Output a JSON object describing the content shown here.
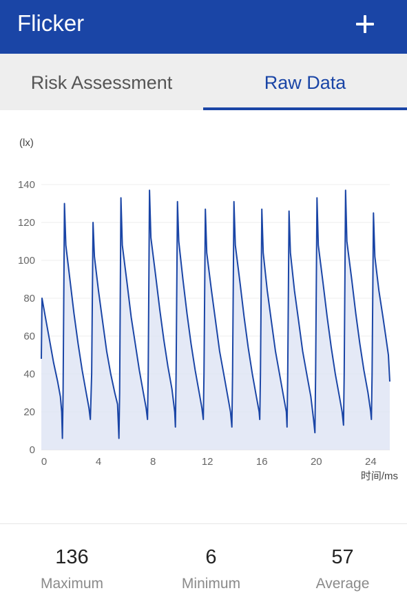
{
  "app": {
    "title": "Flicker",
    "add_icon": "plus-icon",
    "accent_color": "#1a45a6"
  },
  "tabs": [
    {
      "label": "Risk Assessment",
      "active": false
    },
    {
      "label": "Raw Data",
      "active": true
    }
  ],
  "chart_data": {
    "type": "area",
    "title": "",
    "ylabel": "(lx)",
    "xlabel": "时间/ms",
    "xlim": [
      0,
      25.6
    ],
    "ylim": [
      0,
      140
    ],
    "x_ticks": [
      0,
      4,
      8,
      12,
      16,
      20,
      24
    ],
    "y_ticks": [
      0,
      20,
      40,
      60,
      80,
      100,
      120,
      140
    ],
    "grid": true,
    "line_color": "#1a45a6",
    "fill_color": "#dfe5f4",
    "series": [
      {
        "points": [
          [
            0.0,
            48
          ],
          [
            0.05,
            80
          ],
          [
            0.3,
            70
          ],
          [
            0.6,
            58
          ],
          [
            0.9,
            46
          ],
          [
            1.2,
            36
          ],
          [
            1.4,
            28
          ],
          [
            1.5,
            20
          ],
          [
            1.55,
            6
          ],
          [
            1.6,
            30
          ],
          [
            1.7,
            130
          ],
          [
            1.8,
            108
          ],
          [
            2.1,
            90
          ],
          [
            2.4,
            72
          ],
          [
            2.7,
            56
          ],
          [
            3.0,
            42
          ],
          [
            3.3,
            30
          ],
          [
            3.5,
            22
          ],
          [
            3.6,
            16
          ],
          [
            3.7,
            40
          ],
          [
            3.8,
            120
          ],
          [
            3.9,
            102
          ],
          [
            4.2,
            84
          ],
          [
            4.5,
            68
          ],
          [
            4.8,
            52
          ],
          [
            5.1,
            40
          ],
          [
            5.4,
            30
          ],
          [
            5.6,
            24
          ],
          [
            5.7,
            6
          ],
          [
            5.75,
            30
          ],
          [
            5.85,
            133
          ],
          [
            5.95,
            108
          ],
          [
            6.3,
            88
          ],
          [
            6.6,
            70
          ],
          [
            6.9,
            56
          ],
          [
            7.2,
            42
          ],
          [
            7.5,
            30
          ],
          [
            7.7,
            22
          ],
          [
            7.8,
            16
          ],
          [
            7.85,
            40
          ],
          [
            7.95,
            137
          ],
          [
            8.05,
            112
          ],
          [
            8.4,
            92
          ],
          [
            8.7,
            74
          ],
          [
            9.0,
            58
          ],
          [
            9.3,
            44
          ],
          [
            9.6,
            32
          ],
          [
            9.8,
            20
          ],
          [
            9.85,
            12
          ],
          [
            9.9,
            40
          ],
          [
            10.0,
            131
          ],
          [
            10.1,
            110
          ],
          [
            10.4,
            90
          ],
          [
            10.7,
            72
          ],
          [
            11.0,
            56
          ],
          [
            11.3,
            42
          ],
          [
            11.6,
            30
          ],
          [
            11.8,
            22
          ],
          [
            11.9,
            16
          ],
          [
            11.95,
            40
          ],
          [
            12.05,
            127
          ],
          [
            12.15,
            104
          ],
          [
            12.5,
            84
          ],
          [
            12.8,
            68
          ],
          [
            13.1,
            52
          ],
          [
            13.4,
            40
          ],
          [
            13.7,
            28
          ],
          [
            13.9,
            20
          ],
          [
            14.0,
            12
          ],
          [
            14.05,
            40
          ],
          [
            14.15,
            131
          ],
          [
            14.25,
            108
          ],
          [
            14.6,
            88
          ],
          [
            14.9,
            70
          ],
          [
            15.2,
            54
          ],
          [
            15.5,
            40
          ],
          [
            15.8,
            28
          ],
          [
            16.0,
            20
          ],
          [
            16.05,
            16
          ],
          [
            16.1,
            40
          ],
          [
            16.2,
            127
          ],
          [
            16.3,
            104
          ],
          [
            16.6,
            84
          ],
          [
            16.9,
            68
          ],
          [
            17.2,
            52
          ],
          [
            17.5,
            40
          ],
          [
            17.8,
            28
          ],
          [
            18.0,
            20
          ],
          [
            18.05,
            12
          ],
          [
            18.1,
            40
          ],
          [
            18.2,
            126
          ],
          [
            18.3,
            104
          ],
          [
            18.6,
            84
          ],
          [
            18.9,
            68
          ],
          [
            19.2,
            52
          ],
          [
            19.5,
            40
          ],
          [
            19.8,
            28
          ],
          [
            20.0,
            16
          ],
          [
            20.1,
            9
          ],
          [
            20.15,
            40
          ],
          [
            20.25,
            133
          ],
          [
            20.35,
            108
          ],
          [
            20.7,
            88
          ],
          [
            21.0,
            70
          ],
          [
            21.3,
            54
          ],
          [
            21.6,
            40
          ],
          [
            21.9,
            28
          ],
          [
            22.1,
            20
          ],
          [
            22.2,
            13
          ],
          [
            22.25,
            40
          ],
          [
            22.35,
            137
          ],
          [
            22.45,
            110
          ],
          [
            22.8,
            90
          ],
          [
            23.1,
            72
          ],
          [
            23.4,
            56
          ],
          [
            23.7,
            42
          ],
          [
            24.0,
            30
          ],
          [
            24.2,
            20
          ],
          [
            24.25,
            16
          ],
          [
            24.3,
            40
          ],
          [
            24.4,
            125
          ],
          [
            24.5,
            102
          ],
          [
            24.8,
            84
          ],
          [
            25.1,
            70
          ],
          [
            25.3,
            60
          ],
          [
            25.5,
            50
          ],
          [
            25.6,
            36
          ]
        ]
      }
    ]
  },
  "stats": [
    {
      "value": "136",
      "label": "Maximum"
    },
    {
      "value": "6",
      "label": "Minimum"
    },
    {
      "value": "57",
      "label": "Average"
    }
  ]
}
